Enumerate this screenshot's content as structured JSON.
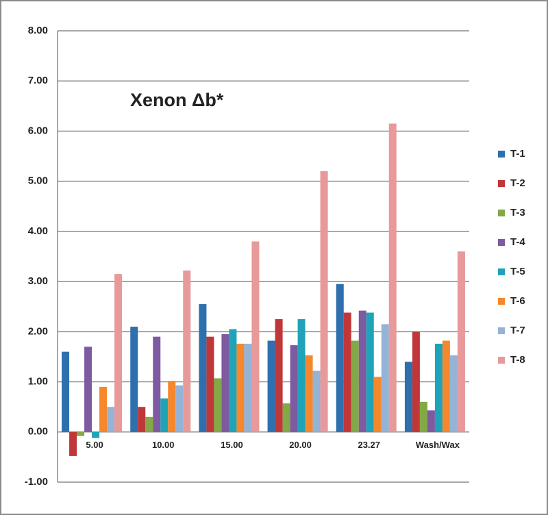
{
  "chart_data": {
    "type": "bar",
    "title": "Xenon Δb*",
    "categories": [
      "5.00",
      "10.00",
      "15.00",
      "20.00",
      "23.27",
      "Wash/Wax"
    ],
    "series": [
      {
        "name": "T-1",
        "color": "#2e6fad",
        "values": [
          1.6,
          2.1,
          2.55,
          1.82,
          2.95,
          1.4
        ]
      },
      {
        "name": "T-2",
        "color": "#c0373a",
        "values": [
          -0.48,
          0.5,
          1.9,
          2.25,
          2.38,
          2.0
        ]
      },
      {
        "name": "T-3",
        "color": "#83a846",
        "values": [
          -0.08,
          0.3,
          1.07,
          0.57,
          1.82,
          0.6
        ]
      },
      {
        "name": "T-4",
        "color": "#7e5aa0",
        "values": [
          1.7,
          1.9,
          1.95,
          1.73,
          2.42,
          0.43
        ]
      },
      {
        "name": "T-5",
        "color": "#1fa3b8",
        "values": [
          -0.12,
          0.67,
          2.05,
          2.25,
          2.38,
          1.76
        ]
      },
      {
        "name": "T-6",
        "color": "#f5882c",
        "values": [
          0.9,
          1.02,
          1.76,
          1.53,
          1.1,
          1.82
        ]
      },
      {
        "name": "T-7",
        "color": "#95b3d7",
        "values": [
          0.5,
          0.93,
          1.76,
          1.22,
          2.15,
          1.53
        ]
      },
      {
        "name": "T-8",
        "color": "#e8999a",
        "values": [
          3.15,
          3.22,
          3.8,
          5.2,
          6.15,
          3.6
        ]
      }
    ],
    "ylim": [
      -1,
      8
    ],
    "yticks": [
      {
        "value": -1,
        "label": "-1.00"
      },
      {
        "value": 0,
        "label": "0.00"
      },
      {
        "value": 1,
        "label": "1.00"
      },
      {
        "value": 2,
        "label": "2.00"
      },
      {
        "value": 3,
        "label": "3.00"
      },
      {
        "value": 4,
        "label": "4.00"
      },
      {
        "value": 5,
        "label": "5.00"
      },
      {
        "value": 6,
        "label": "6.00"
      },
      {
        "value": 7,
        "label": "7.00"
      },
      {
        "value": 8,
        "label": "8.00"
      }
    ],
    "grid": true,
    "legend": "right"
  }
}
